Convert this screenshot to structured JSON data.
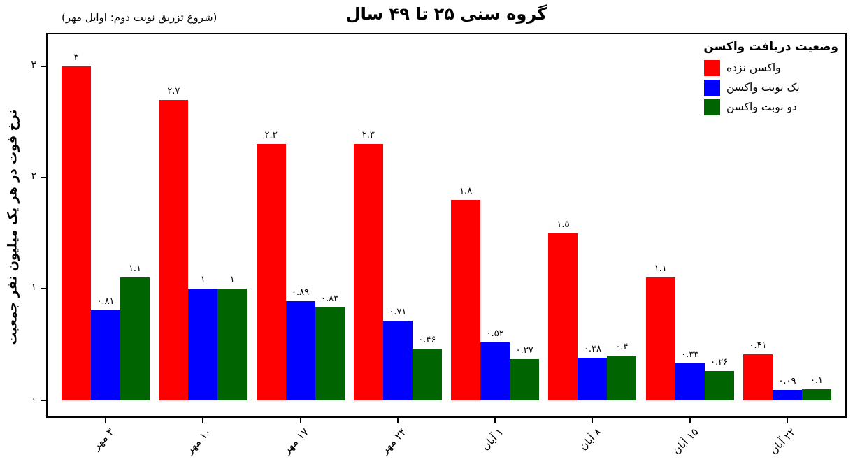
{
  "title": "گروه سنی ۲۵ تا ۴۹ سال",
  "annotation": "(شروع تزریق نوبت دوم: اوایل مهر)",
  "ylabel": "نرخ فوت در هر یک میلیون نفر جمعیت",
  "legend": {
    "title": "وضعیت دریافت واکسن",
    "entries": [
      {
        "label": "واکسن نزده",
        "color": "#ff0000"
      },
      {
        "label": "یک نوبت واکسن",
        "color": "#0000ff"
      },
      {
        "label": "دو نوبت واکسن",
        "color": "#006400"
      }
    ]
  },
  "chart_data": {
    "type": "bar",
    "title": "گروه سنی ۲۵ تا ۴۹ سال",
    "subtitle": "(شروع تزریق نوبت دوم: اوایل مهر)",
    "ylabel": "نرخ فوت در هر یک میلیون نفر جمعیت",
    "xlabel": "",
    "categories": [
      "۳ مهر",
      "۱۰ مهر",
      "۱۷ مهر",
      "۲۴ مهر",
      "۱ آبان",
      "۸ آبان",
      "۱۵ آبان",
      "۲۲ آبان"
    ],
    "series": [
      {
        "name": "واکسن نزده",
        "color": "#ff0000",
        "values": [
          3,
          2.7,
          2.3,
          2.3,
          1.8,
          1.5,
          1.1,
          0.41
        ],
        "labels": [
          "۳",
          "۲.۷",
          "۲.۳",
          "۲.۳",
          "۱.۸",
          "۱.۵",
          "۱.۱",
          "۰.۴۱"
        ]
      },
      {
        "name": "یک نوبت واکسن",
        "color": "#0000ff",
        "values": [
          0.81,
          1,
          0.89,
          0.71,
          0.52,
          0.38,
          0.33,
          0.09
        ],
        "labels": [
          "۰.۸۱",
          "۱",
          "۰.۸۹",
          "۰.۷۱",
          "۰.۵۲",
          "۰.۳۸",
          "۰.۳۳",
          "۰.۰۹"
        ]
      },
      {
        "name": "دو نوبت واکسن",
        "color": "#006400",
        "values": [
          1.1,
          1,
          0.83,
          0.46,
          0.37,
          0.4,
          0.26,
          0.1
        ],
        "labels": [
          "۱.۱",
          "۱",
          "۰.۸۳",
          "۰.۴۶",
          "۰.۳۷",
          "۰.۴",
          "۰.۲۶",
          "۰.۱"
        ]
      }
    ],
    "yticks": {
      "values": [
        0,
        1,
        2,
        3
      ],
      "labels": [
        "۰",
        "۱",
        "۲",
        "۳"
      ]
    },
    "ylim": [
      -0.16,
      3.3
    ],
    "grid": false,
    "legend_title": "وضعیت دریافت واکسن",
    "legend_position": "top-right-inside",
    "bar_labels_shown": true
  }
}
